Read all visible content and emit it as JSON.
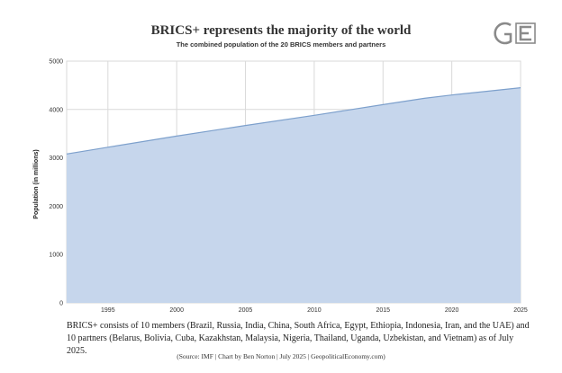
{
  "chart_data": {
    "type": "area",
    "title": "BRICS+ represents the majority of the world",
    "subtitle": "The combined population of the 20 BRICS members and partners",
    "xlabel": "",
    "ylabel": "Population (in millions)",
    "x": [
      1992,
      1995,
      2000,
      2005,
      2010,
      2015,
      2018,
      2020,
      2025
    ],
    "series": [
      {
        "values": [
          3080,
          3220,
          3450,
          3670,
          3880,
          4100,
          4230,
          4300,
          4450
        ]
      }
    ],
    "xlim": [
      1992,
      2025
    ],
    "ylim": [
      0,
      5000
    ],
    "xticks": [
      1995,
      2000,
      2005,
      2010,
      2015,
      2020,
      2025
    ],
    "yticks": [
      0,
      1000,
      2000,
      3000,
      4000,
      5000
    ],
    "grid": true,
    "legend": "none",
    "colors": {
      "fill": "#c6d6ec",
      "line": "#7da0cc",
      "grid": "#d9d9d9"
    }
  },
  "note": "BRICS+ consists of 10 members (Brazil, Russia, India, China, South Africa, Egypt, Ethiopia, Indonesia, Iran, and the UAE) and 10 partners (Belarus, Bolivia, Cuba, Kazakhstan, Malaysia, Nigeria, Thailand, Uganda, Uzbekistan, and Vietnam) as of July 2025.",
  "source": "(Source: IMF | Chart by Ben Norton | July 2025 | GeopoliticalEconomy.com)",
  "logo": {
    "text": "GE",
    "color": "#8a8a8a"
  }
}
